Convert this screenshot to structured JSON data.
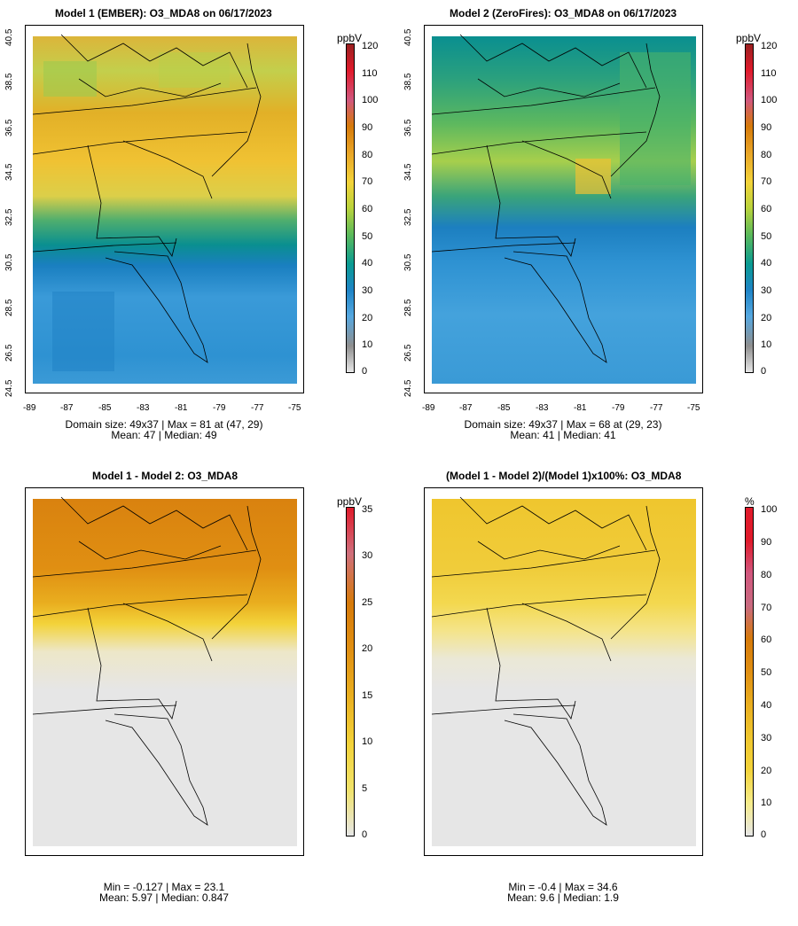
{
  "panels": [
    {
      "title": "Model 1 (EMBER): O3_MDA8 on 06/17/2023",
      "unit": "ppbV",
      "stats_line1": "Domain size: 49x37 | Max = 81 at (47, 29)",
      "stats_line2": "Mean: 47 |  Median: 49",
      "colorbar_ticks": [
        "120",
        "110",
        "100",
        "90",
        "80",
        "70",
        "60",
        "50",
        "40",
        "30",
        "20",
        "10",
        "0"
      ]
    },
    {
      "title": "Model 2 (ZeroFires): O3_MDA8 on 06/17/2023",
      "unit": "ppbV",
      "stats_line1": "Domain size: 49x37 | Max = 68 at (29, 23)",
      "stats_line2": "Mean: 41 |  Median: 41",
      "colorbar_ticks": [
        "120",
        "110",
        "100",
        "90",
        "80",
        "70",
        "60",
        "50",
        "40",
        "30",
        "20",
        "10",
        "0"
      ]
    },
    {
      "title": "Model 1 - Model 2: O3_MDA8",
      "unit": "ppbV",
      "stats_line1": "Min = -0.127 | Max = 23.1",
      "stats_line2": "Mean: 5.97 |  Median: 0.847",
      "colorbar_ticks": [
        "35",
        "30",
        "25",
        "20",
        "15",
        "10",
        "5",
        "0"
      ]
    },
    {
      "title": "(Model 1 - Model 2)/(Model 1)x100%: O3_MDA8",
      "unit": "%",
      "stats_line1": "Min = -0.4 | Max = 34.6",
      "stats_line2": "Mean: 9.6 |  Median: 1.9",
      "colorbar_ticks": [
        "100",
        "90",
        "80",
        "70",
        "60",
        "50",
        "40",
        "30",
        "20",
        "10",
        "0"
      ]
    }
  ],
  "x_axis_ticks": [
    "-89",
    "-87",
    "-85",
    "-83",
    "-81",
    "-79",
    "-77",
    "-75"
  ],
  "y_axis_ticks": [
    "40.5",
    "38.5",
    "36.5",
    "34.5",
    "32.5",
    "30.5",
    "28.5",
    "26.5",
    "24.5"
  ],
  "colors": {
    "ppb_scale": [
      "#e6e6e6",
      "#8f8f8f",
      "#56a8e0",
      "#1e84c6",
      "#0a9b92",
      "#5cba5a",
      "#b9d33c",
      "#f3d33a",
      "#e8a426",
      "#d67a0a",
      "#d1577e",
      "#e01a2b",
      "#9a2020"
    ],
    "diff_scale": [
      "#e6e6e6",
      "#f1e36b",
      "#f3d33a",
      "#e9ae1f",
      "#e08f12",
      "#d67a0a",
      "#cf6f7c",
      "#e01a2b"
    ],
    "pct_scale": [
      "#e6e6e6",
      "#f6ec8a",
      "#f3d33a",
      "#efc62e",
      "#e9ae1f",
      "#e08f12",
      "#d67a0a",
      "#c96a80",
      "#d1577e",
      "#e01a2b",
      "#e01a2b"
    ]
  }
}
